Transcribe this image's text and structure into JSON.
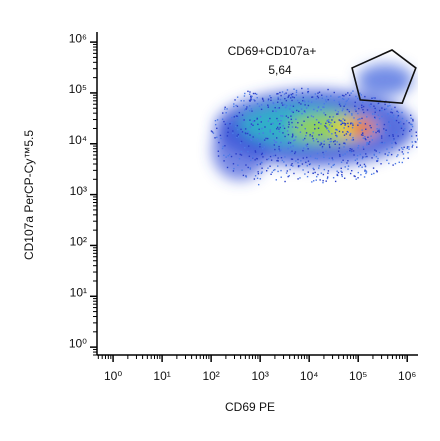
{
  "chart_data": {
    "type": "density",
    "x_label": "CD69 PE",
    "y_label": "CD107a PerCP-Cy™5.5",
    "xscale": "log",
    "yscale": "log",
    "xlim": [
      0.47,
      1660000
    ],
    "ylim": [
      0.7,
      1580000
    ],
    "xticks": [
      {
        "value": 1,
        "label": "10⁰"
      },
      {
        "value": 10,
        "label": "10¹"
      },
      {
        "value": 100,
        "label": "10²"
      },
      {
        "value": 1000,
        "label": "10³"
      },
      {
        "value": 10000,
        "label": "10⁴"
      },
      {
        "value": 100000,
        "label": "10⁵"
      },
      {
        "value": 1000000,
        "label": "10⁶"
      }
    ],
    "yticks": [
      {
        "value": 1,
        "label": "10⁰"
      },
      {
        "value": 10,
        "label": "10¹"
      },
      {
        "value": 100,
        "label": "10²"
      },
      {
        "value": 1000,
        "label": "10³"
      },
      {
        "value": 10000,
        "label": "10⁴"
      },
      {
        "value": 100000,
        "label": "10⁵"
      },
      {
        "value": 1000000,
        "label": "10⁶"
      }
    ],
    "gates": [
      {
        "name": "CD69+CD107a+",
        "value": 5.64,
        "value_label": "5,64",
        "vertices": [
          [
            75000,
            310000
          ],
          [
            490000,
            700000
          ],
          [
            1500000,
            310000
          ],
          [
            790000,
            63000
          ],
          [
            110000,
            73000
          ]
        ]
      }
    ]
  }
}
